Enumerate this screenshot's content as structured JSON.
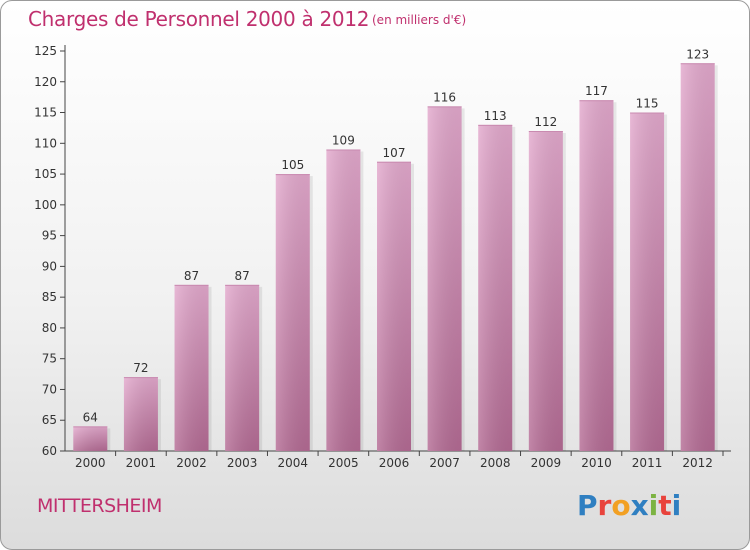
{
  "header": {
    "title": "Charges de Personnel 2000 à 2012",
    "subtitle": "(en milliers d'€)"
  },
  "footer": {
    "commune": "MITTERSHEIM",
    "logo_letters": [
      "P",
      "r",
      "o",
      "x",
      "i",
      "t",
      "i"
    ]
  },
  "colors": {
    "bar_top": "#e3a9cd",
    "bar_bottom": "#b46b94",
    "text_accent": "#c0306e",
    "logo": [
      "#2f7fc1",
      "#e8433c",
      "#f2a023",
      "#2f7fc1",
      "#7cb342",
      "#e8433c",
      "#2f7fc1"
    ]
  },
  "chart_data": {
    "type": "bar",
    "title": "Charges de Personnel 2000 à 2012",
    "subtitle": "(en milliers d'€)",
    "categories": [
      "2000",
      "2001",
      "2002",
      "2003",
      "2004",
      "2005",
      "2006",
      "2007",
      "2008",
      "2009",
      "2010",
      "2011",
      "2012"
    ],
    "values": [
      64,
      72,
      87,
      87,
      105,
      109,
      107,
      116,
      113,
      112,
      117,
      115,
      123
    ],
    "ylim": [
      60,
      125
    ],
    "yticks": [
      60,
      65,
      70,
      75,
      80,
      85,
      90,
      95,
      100,
      105,
      110,
      115,
      120,
      125
    ],
    "grid": false,
    "legend": "none"
  }
}
